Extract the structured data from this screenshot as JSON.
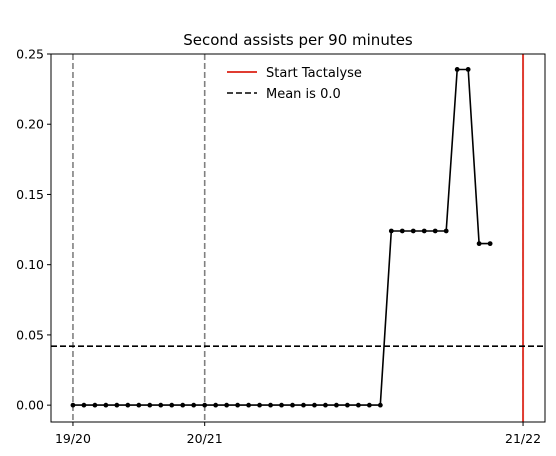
{
  "chart_data": {
    "type": "line",
    "title": "Second assists per 90 minutes",
    "xlabel": "",
    "ylabel": "",
    "ylim": [
      -0.012,
      0.25
    ],
    "xlim": [
      -2,
      43
    ],
    "x_ticks": [
      {
        "x": 0,
        "label": "19/20"
      },
      {
        "x": 12,
        "label": "20/21"
      },
      {
        "x": 41,
        "label": "21/22"
      }
    ],
    "y_ticks": [
      {
        "y": 0.0,
        "label": "0.00"
      },
      {
        "y": 0.05,
        "label": "0.05"
      },
      {
        "y": 0.1,
        "label": "0.10"
      },
      {
        "y": 0.15,
        "label": "0.15"
      },
      {
        "y": 0.2,
        "label": "0.20"
      },
      {
        "y": 0.25,
        "label": "0.25"
      }
    ],
    "season_lines": [
      0,
      12,
      41
    ],
    "series": [
      {
        "x": [
          0,
          1,
          2,
          3,
          4,
          5,
          6,
          7,
          8,
          9,
          10,
          11,
          12,
          13,
          14,
          15,
          16,
          17,
          18,
          19,
          20,
          21,
          22,
          23,
          24,
          25,
          26,
          27,
          28,
          29,
          30,
          31,
          32,
          33,
          34,
          35,
          36,
          37,
          38
        ],
        "y": [
          0,
          0,
          0,
          0,
          0,
          0,
          0,
          0,
          0,
          0,
          0,
          0,
          0,
          0,
          0,
          0,
          0,
          0,
          0,
          0,
          0,
          0,
          0,
          0,
          0,
          0,
          0,
          0,
          0,
          0.124,
          0.124,
          0.124,
          0.124,
          0.124,
          0.124,
          0.239,
          0.239,
          0.115,
          0.115
        ],
        "color": "#000000"
      }
    ],
    "start_line": {
      "name": "Start Tactalyse",
      "x": 41,
      "color": "#e03c31"
    },
    "mean_line": {
      "name": "Mean is 0.0",
      "y": 0.042,
      "color": "#000000"
    },
    "legend_position": "upper-center"
  }
}
